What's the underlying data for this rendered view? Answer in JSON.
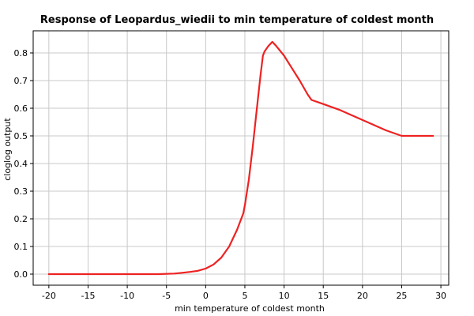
{
  "chart_data": {
    "type": "line",
    "title": "Response of Leopardus_wiedii to min temperature of coldest month",
    "xlabel": "min temperature of coldest month",
    "ylabel": "cloglog output",
    "xlim": [
      -22,
      31
    ],
    "ylim": [
      -0.04,
      0.88
    ],
    "x_ticks": [
      -20,
      -15,
      -10,
      -5,
      0,
      5,
      10,
      15,
      20,
      25,
      30
    ],
    "x_tick_labels": [
      "-20",
      "-15",
      "-10",
      "-5",
      "0",
      "5",
      "10",
      "15",
      "20",
      "25",
      "30"
    ],
    "y_ticks": [
      0.0,
      0.1,
      0.2,
      0.3,
      0.4,
      0.5,
      0.6,
      0.7,
      0.8
    ],
    "y_tick_labels": [
      "0.0",
      "0.1",
      "0.2",
      "0.3",
      "0.4",
      "0.5",
      "0.6",
      "0.7",
      "0.8"
    ],
    "grid": true,
    "series": [
      {
        "color": "#ee2222",
        "x": [
          -20,
          -10,
          -6,
          -4,
          -3,
          -2,
          -1,
          0,
          1,
          2,
          3,
          4,
          4.8,
          5,
          5.5,
          6,
          6.5,
          7,
          7.3,
          7.5,
          8,
          8.5,
          9,
          10,
          11,
          12,
          13,
          13.5,
          15,
          17,
          19,
          21,
          23,
          25,
          27,
          29
        ],
        "y": [
          0.0,
          0.0,
          0.0,
          0.002,
          0.005,
          0.008,
          0.012,
          0.02,
          0.035,
          0.06,
          0.1,
          0.16,
          0.22,
          0.25,
          0.34,
          0.46,
          0.59,
          0.72,
          0.79,
          0.805,
          0.825,
          0.84,
          0.825,
          0.79,
          0.745,
          0.7,
          0.65,
          0.63,
          0.615,
          0.595,
          0.57,
          0.545,
          0.52,
          0.5,
          0.5,
          0.5
        ]
      }
    ]
  }
}
